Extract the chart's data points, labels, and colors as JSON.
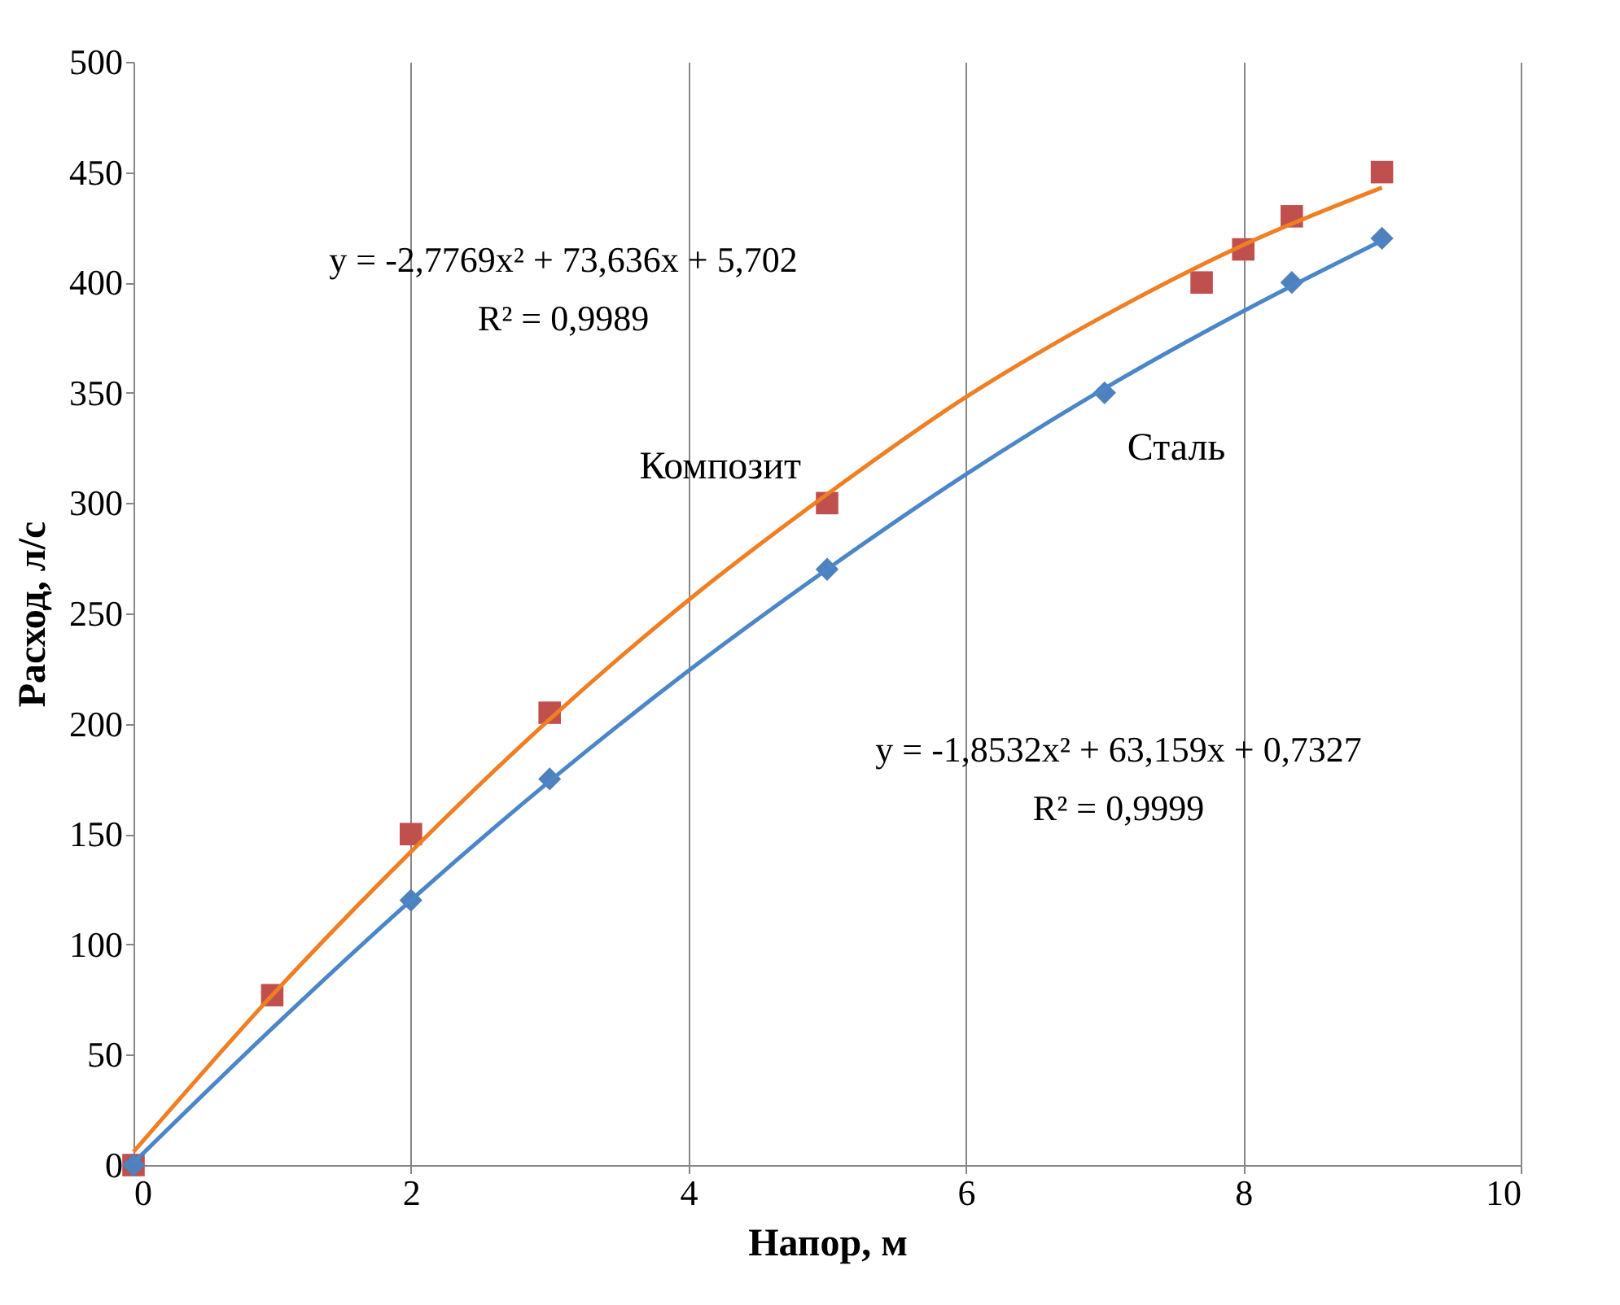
{
  "chart_data": {
    "type": "scatter",
    "xlabel": "Напор, м",
    "ylabel": "Расход, л/с",
    "xlim": [
      0,
      10
    ],
    "xticks": [
      0,
      2,
      4,
      6,
      8,
      10
    ],
    "ylim": [
      0,
      500
    ],
    "yticks": [
      0,
      50,
      100,
      150,
      200,
      250,
      300,
      350,
      400,
      450,
      500
    ],
    "grid": "x",
    "series": [
      {
        "name": "Композит",
        "type": "scatter",
        "marker": "square",
        "color": "#c0504d",
        "x": [
          0,
          1,
          2,
          3,
          5,
          7.7,
          8,
          8.35,
          9
        ],
        "values": [
          0,
          77,
          150,
          205,
          300,
          400,
          415,
          430,
          450
        ]
      },
      {
        "name": "Сталь",
        "type": "scatter",
        "marker": "diamond",
        "color": "#4f81bd",
        "x": [
          0,
          2,
          3,
          5,
          7,
          8.35,
          9
        ],
        "values": [
          0,
          120,
          175,
          270,
          350,
          400,
          420
        ]
      },
      {
        "type": "line",
        "marker": "none",
        "color": "#f07e22",
        "x": [
          0,
          1,
          2,
          3,
          4,
          5,
          6,
          7,
          8,
          9
        ],
        "values": [
          6,
          77,
          142,
          202,
          256,
          304,
          348,
          385,
          417,
          443
        ]
      },
      {
        "type": "line",
        "marker": "none",
        "color": "#4a86c8",
        "x": [
          0,
          1,
          2,
          3,
          4,
          5,
          6,
          7,
          8,
          9
        ],
        "values": [
          1,
          62,
          120,
          174,
          224,
          270,
          313,
          352,
          387,
          419
        ]
      }
    ],
    "annotations": [
      "y = -2,7769x² + 73,636x + 5,702",
      "R² = 0,9989",
      "y = -1,8532x² + 63,159x + 0,7327",
      "R² = 0,9999"
    ]
  }
}
